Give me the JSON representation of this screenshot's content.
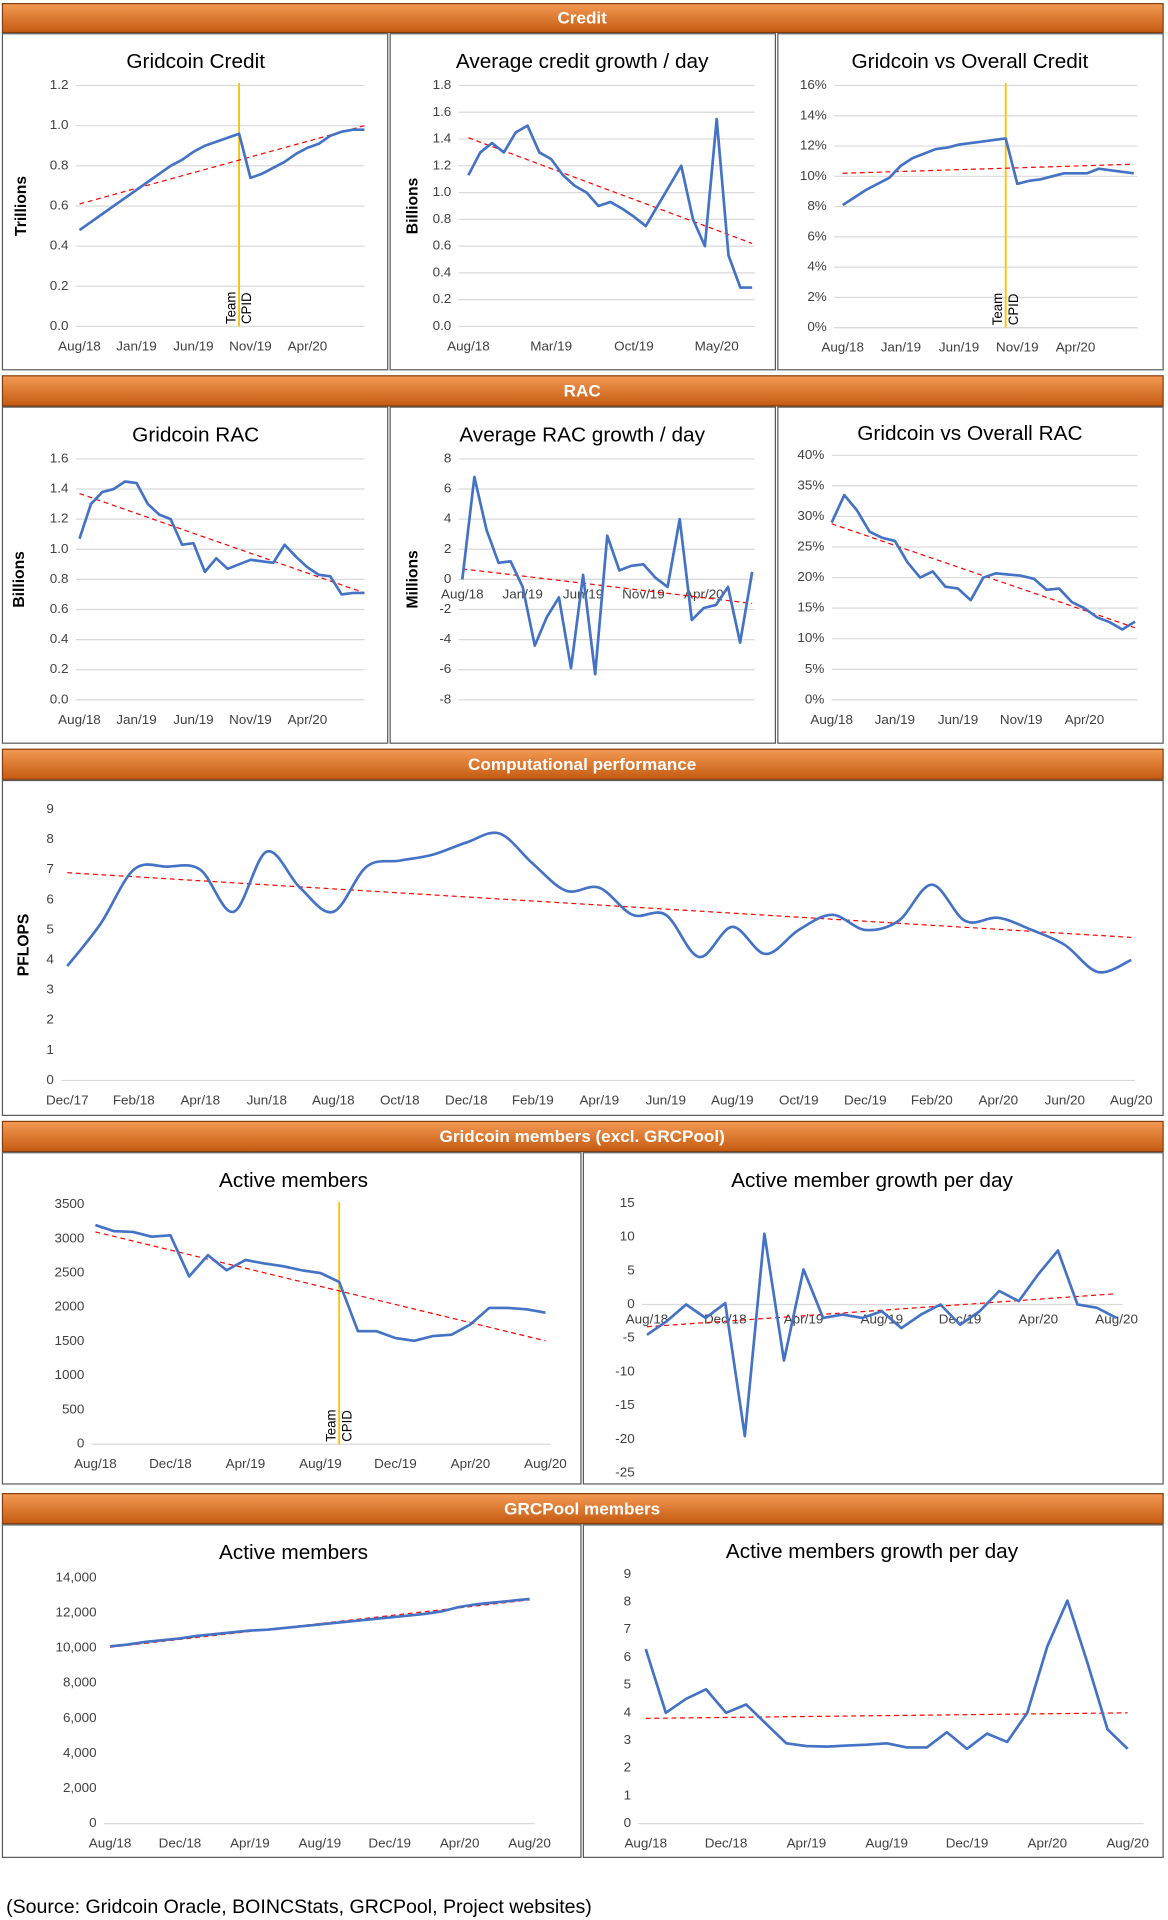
{
  "sections": [
    {
      "title": "Credit"
    },
    {
      "title": "RAC"
    },
    {
      "title": "Computational performance"
    },
    {
      "title": "Gridcoin members (excl. GRCPool)"
    },
    {
      "title": "GRCPool members"
    }
  ],
  "source": "(Source: Gridcoin Oracle, BOINCStats, GRCPool, Project websites)",
  "chart_data": [
    {
      "type": "line",
      "title": "Gridcoin Credit",
      "ylabel": "Trillions",
      "grid": true,
      "categories": [
        "Aug/18",
        null,
        null,
        null,
        null,
        "Jan/19",
        null,
        null,
        null,
        null,
        "Jun/19",
        null,
        null,
        null,
        null,
        "Nov/19",
        null,
        null,
        null,
        null,
        "Apr/20",
        null,
        null,
        null,
        null,
        null
      ],
      "series": [
        {
          "color": "#4472c4",
          "values": [
            0.48,
            0.52,
            0.56,
            0.6,
            0.64,
            0.68,
            0.72,
            0.76,
            0.8,
            0.83,
            0.87,
            0.9,
            0.92,
            0.94,
            0.96,
            0.74,
            0.76,
            0.79,
            0.82,
            0.86,
            0.89,
            0.91,
            0.95,
            0.97,
            0.98,
            0.98
          ]
        }
      ],
      "trend": {
        "color": "#ff0000",
        "values": [
          0.61,
          1.0
        ]
      },
      "annotation": {
        "index": 14,
        "lines": [
          "Team",
          "CPID"
        ],
        "color": "#ffc000"
      },
      "ylim": [
        0,
        1.2
      ],
      "yticks": [
        {
          "value": 0,
          "label": "0.0"
        },
        0.2,
        0.4,
        0.6,
        0.8,
        {
          "value": 1,
          "label": "1.0"
        },
        1.2
      ]
    },
    {
      "type": "line",
      "title": "Average credit growth / day",
      "ylabel": "Billions",
      "grid": true,
      "categories": [
        "Aug/18",
        null,
        null,
        null,
        null,
        null,
        null,
        "Mar/19",
        null,
        null,
        null,
        null,
        null,
        null,
        "Oct/19",
        null,
        null,
        null,
        null,
        null,
        null,
        "May/20",
        null,
        null,
        null
      ],
      "series": [
        {
          "color": "#4472c4",
          "values": [
            1.13,
            1.3,
            1.37,
            1.3,
            1.45,
            1.5,
            1.3,
            1.25,
            1.13,
            1.05,
            1.0,
            0.9,
            0.93,
            0.88,
            0.82,
            0.75,
            0.9,
            1.05,
            1.2,
            0.8,
            0.6,
            1.55,
            0.53,
            0.29,
            0.29
          ]
        }
      ],
      "trend": {
        "color": "#ff0000",
        "values": [
          1.41,
          0.62
        ]
      },
      "ylim": [
        0,
        1.8
      ],
      "yticks": [
        {
          "value": 0,
          "label": "0.0"
        },
        0.2,
        0.4,
        0.6,
        0.8,
        {
          "value": 1,
          "label": "1.0"
        },
        1.2,
        1.4,
        1.6,
        1.8
      ]
    },
    {
      "type": "line",
      "title": "Gridcoin vs Overall Credit",
      "grid": true,
      "categories": [
        "Aug/18",
        null,
        null,
        null,
        null,
        "Jan/19",
        null,
        null,
        null,
        null,
        "Jun/19",
        null,
        null,
        null,
        null,
        "Nov/19",
        null,
        null,
        null,
        null,
        "Apr/20",
        null,
        null,
        null,
        null,
        null
      ],
      "series": [
        {
          "color": "#4472c4",
          "values": [
            8.1,
            8.6,
            9.1,
            9.5,
            9.9,
            10.7,
            11.2,
            11.5,
            11.8,
            11.9,
            12.1,
            12.2,
            12.3,
            12.4,
            12.5,
            9.5,
            9.7,
            9.8,
            10.0,
            10.2,
            10.2,
            10.2,
            10.5,
            10.4,
            10.3,
            10.2
          ]
        }
      ],
      "trend": {
        "color": "#ff0000",
        "values": [
          10.2,
          10.8
        ]
      },
      "annotation": {
        "index": 14,
        "lines": [
          "Team",
          "CPID"
        ],
        "color": "#ffc000"
      },
      "ylim": [
        0,
        16
      ],
      "yticks": [
        {
          "value": 0,
          "label": "0%"
        },
        {
          "value": 2,
          "label": "2%"
        },
        {
          "value": 4,
          "label": "4%"
        },
        {
          "value": 6,
          "label": "6%"
        },
        {
          "value": 8,
          "label": "8%"
        },
        {
          "value": 10,
          "label": "10%"
        },
        {
          "value": 12,
          "label": "12%"
        },
        {
          "value": 14,
          "label": "14%"
        },
        {
          "value": 16,
          "label": "16%"
        }
      ]
    },
    {
      "type": "line",
      "title": "Gridcoin RAC",
      "ylabel": "Billions",
      "grid": true,
      "categories": [
        "Aug/18",
        null,
        null,
        null,
        null,
        "Jan/19",
        null,
        null,
        null,
        null,
        "Jun/19",
        null,
        null,
        null,
        null,
        "Nov/19",
        null,
        null,
        null,
        null,
        "Apr/20",
        null,
        null,
        null,
        null,
        null
      ],
      "series": [
        {
          "color": "#4472c4",
          "values": [
            1.07,
            1.3,
            1.38,
            1.4,
            1.45,
            1.44,
            1.3,
            1.23,
            1.2,
            1.03,
            1.04,
            0.85,
            0.94,
            0.87,
            0.9,
            0.93,
            0.92,
            0.91,
            1.03,
            0.95,
            0.88,
            0.83,
            0.82,
            0.7,
            0.71,
            0.71
          ]
        }
      ],
      "trend": {
        "color": "#ff0000",
        "values": [
          1.37,
          0.71
        ]
      },
      "ylim": [
        0,
        1.6
      ],
      "yticks": [
        {
          "value": 0,
          "label": "0.0"
        },
        0.2,
        0.4,
        0.6,
        0.8,
        {
          "value": 1,
          "label": "1.0"
        },
        1.2,
        1.4,
        1.6
      ]
    },
    {
      "type": "line",
      "title": "Average RAC growth / day",
      "ylabel": "Millions",
      "grid": true,
      "xaxis_at": 0,
      "categories": [
        "Aug/18",
        null,
        null,
        null,
        null,
        "Jan/19",
        null,
        null,
        null,
        null,
        "Jun/19",
        null,
        null,
        null,
        null,
        "Nov/19",
        null,
        null,
        null,
        null,
        "Apr/20",
        null,
        null,
        null,
        null
      ],
      "series": [
        {
          "color": "#4472c4",
          "values": [
            0,
            6.8,
            3.3,
            1.1,
            1.2,
            -0.5,
            -4.4,
            -2.5,
            -1.2,
            -5.9,
            0.3,
            -6.3,
            2.9,
            0.6,
            0.9,
            1.0,
            0.1,
            -0.5,
            4.0,
            -2.7,
            -1.9,
            -1.7,
            -0.5,
            -4.2,
            0.5
          ]
        }
      ],
      "trend": {
        "color": "#ff0000",
        "values": [
          0.7,
          -1.6
        ]
      },
      "ylim": [
        -8,
        8
      ],
      "yticks": [
        -8,
        -6,
        -4,
        -2,
        0,
        2,
        4,
        6,
        8
      ]
    },
    {
      "type": "line",
      "title": "Gridcoin vs Overall RAC",
      "grid": true,
      "categories": [
        "Aug/18",
        null,
        null,
        null,
        null,
        "Jan/19",
        null,
        null,
        null,
        null,
        "Jun/19",
        null,
        null,
        null,
        null,
        "Nov/19",
        null,
        null,
        null,
        null,
        "Apr/20",
        null,
        null,
        null,
        null
      ],
      "series": [
        {
          "color": "#4472c4",
          "values": [
            29,
            33.5,
            31,
            27.5,
            26.5,
            26,
            22.5,
            20,
            21,
            18.5,
            18.2,
            16.3,
            20,
            20.7,
            20.5,
            20.3,
            19.8,
            18,
            18.2,
            16,
            15,
            13.5,
            12.7,
            11.5,
            12.8
          ]
        }
      ],
      "trend": {
        "color": "#ff0000",
        "values": [
          28.8,
          11.8
        ]
      },
      "ylim": [
        0,
        40
      ],
      "yticks": [
        {
          "value": 0,
          "label": "0%"
        },
        {
          "value": 5,
          "label": "5%"
        },
        {
          "value": 10,
          "label": "10%"
        },
        {
          "value": 15,
          "label": "15%"
        },
        {
          "value": 20,
          "label": "20%"
        },
        {
          "value": 25,
          "label": "25%"
        },
        {
          "value": 30,
          "label": "30%"
        },
        {
          "value": 35,
          "label": "35%"
        },
        {
          "value": 40,
          "label": "40%"
        }
      ]
    },
    {
      "type": "line",
      "ylabel": "PFLOPS",
      "grid": false,
      "smooth": true,
      "categories": [
        "Dec/17",
        null,
        "Feb/18",
        null,
        "Apr/18",
        null,
        "Jun/18",
        null,
        "Aug/18",
        null,
        "Oct/18",
        null,
        "Dec/18",
        null,
        "Feb/19",
        null,
        "Apr/19",
        null,
        "Jun/19",
        null,
        "Aug/19",
        null,
        "Oct/19",
        null,
        "Dec/19",
        null,
        "Feb/20",
        null,
        "Apr/20",
        null,
        "Jun/20",
        null,
        "Aug/20"
      ],
      "series": [
        {
          "color": "#4472c4",
          "values": [
            3.8,
            5.2,
            7.0,
            7.1,
            7.0,
            5.6,
            7.6,
            6.4,
            5.6,
            7.1,
            7.3,
            7.5,
            7.9,
            8.2,
            7.2,
            6.3,
            6.4,
            5.5,
            5.5,
            4.1,
            5.1,
            4.2,
            5.0,
            5.5,
            5.0,
            5.3,
            6.5,
            5.3,
            5.4,
            5.0,
            4.5,
            3.6,
            4.0
          ]
        }
      ],
      "trend": {
        "color": "#ff0000",
        "values": [
          6.9,
          4.75
        ]
      },
      "ylim": [
        0,
        9
      ],
      "yticks": [
        0,
        1,
        2,
        3,
        4,
        5,
        6,
        7,
        8,
        9
      ]
    },
    {
      "type": "line",
      "title": "Active members",
      "title_color": "#595959",
      "grid": false,
      "categories": [
        "Aug/18",
        null,
        null,
        null,
        "Dec/18",
        null,
        null,
        null,
        "Apr/19",
        null,
        null,
        null,
        "Aug/19",
        null,
        null,
        null,
        "Dec/19",
        null,
        null,
        null,
        "Apr/20",
        null,
        null,
        null,
        "Aug/20"
      ],
      "series": [
        {
          "color": "#4472c4",
          "values": [
            3200,
            3110,
            3100,
            3030,
            3050,
            2450,
            2760,
            2540,
            2690,
            2640,
            2600,
            2540,
            2500,
            2370,
            1650,
            1650,
            1550,
            1510,
            1580,
            1600,
            1750,
            1990,
            1990,
            1970,
            1920
          ]
        }
      ],
      "trend": {
        "color": "#ff0000",
        "values": [
          3100,
          1510
        ]
      },
      "annotation": {
        "index": 13,
        "lines": [
          "Team",
          "CPID"
        ],
        "color": "#ffc000"
      },
      "ylim": [
        0,
        3500
      ],
      "yticks": [
        0,
        500,
        1000,
        1500,
        2000,
        2500,
        3000,
        3500
      ]
    },
    {
      "type": "line",
      "title": "Active member growth per day",
      "title_color": "#595959",
      "grid": false,
      "xaxis_at": 0,
      "categories": [
        "Aug/18",
        null,
        null,
        null,
        "Dec/18",
        null,
        null,
        null,
        "Apr/19",
        null,
        null,
        null,
        "Aug/19",
        null,
        null,
        null,
        "Dec/19",
        null,
        null,
        null,
        "Apr/20",
        null,
        null,
        null,
        "Aug/20"
      ],
      "series": [
        {
          "color": "#4472c4",
          "values": [
            -4.5,
            -2.5,
            0,
            -2,
            0.2,
            -19.5,
            10.5,
            -8.3,
            5.2,
            -2,
            -1.5,
            -2,
            -1,
            -3.5,
            -1.5,
            0,
            -3,
            -1,
            2,
            0.5,
            4.5,
            8,
            0,
            -0.5,
            -2
          ]
        }
      ],
      "trend": {
        "color": "#ff0000",
        "values": [
          -3.3,
          1.6
        ]
      },
      "ylim": [
        -25,
        15
      ],
      "yticks": [
        -25,
        -20,
        -15,
        -10,
        -5,
        0,
        5,
        10,
        15
      ]
    },
    {
      "type": "line",
      "title": "Active members",
      "grid": false,
      "categories": [
        "Aug/18",
        null,
        null,
        null,
        "Dec/18",
        null,
        null,
        null,
        "Apr/19",
        null,
        null,
        null,
        "Aug/19",
        null,
        null,
        null,
        "Dec/19",
        null,
        null,
        null,
        "Apr/20",
        null,
        null,
        null,
        "Aug/20"
      ],
      "series": [
        {
          "color": "#4472c4",
          "values": [
            10100,
            10200,
            10350,
            10450,
            10550,
            10700,
            10800,
            10900,
            11000,
            11050,
            11150,
            11250,
            11350,
            11450,
            11550,
            11650,
            11750,
            11850,
            11950,
            12100,
            12350,
            12500,
            12600,
            12700,
            12800
          ]
        }
      ],
      "trend": {
        "color": "#ff0000",
        "values": [
          10050,
          12750
        ]
      },
      "ylim": [
        0,
        14000
      ],
      "yticks": [
        0,
        {
          "value": 2000,
          "label": "2,000"
        },
        {
          "value": 4000,
          "label": "4,000"
        },
        {
          "value": 6000,
          "label": "6,000"
        },
        {
          "value": 8000,
          "label": "8,000"
        },
        {
          "value": 10000,
          "label": "10,000"
        },
        {
          "value": 12000,
          "label": "12,000"
        },
        {
          "value": 14000,
          "label": "14,000"
        }
      ]
    },
    {
      "type": "line",
      "title": "Active members growth per day",
      "grid": false,
      "categories": [
        "Aug/18",
        null,
        null,
        null,
        "Dec/18",
        null,
        null,
        null,
        "Apr/19",
        null,
        null,
        null,
        "Aug/19",
        null,
        null,
        null,
        "Dec/19",
        null,
        null,
        null,
        "Apr/20",
        null,
        null,
        null,
        "Aug/20"
      ],
      "series": [
        {
          "color": "#4472c4",
          "values": [
            6.3,
            4.0,
            4.5,
            4.85,
            4.0,
            4.3,
            3.6,
            2.9,
            2.8,
            2.78,
            2.82,
            2.85,
            2.9,
            2.75,
            2.75,
            3.3,
            2.7,
            3.25,
            2.95,
            4.0,
            6.4,
            8.05,
            5.8,
            3.4,
            2.7
          ]
        }
      ],
      "trend": {
        "color": "#ff0000",
        "values": [
          3.8,
          4.0
        ]
      },
      "ylim": [
        0,
        9
      ],
      "yticks": [
        0,
        1,
        2,
        3,
        4,
        5,
        6,
        7,
        8,
        9
      ]
    }
  ]
}
